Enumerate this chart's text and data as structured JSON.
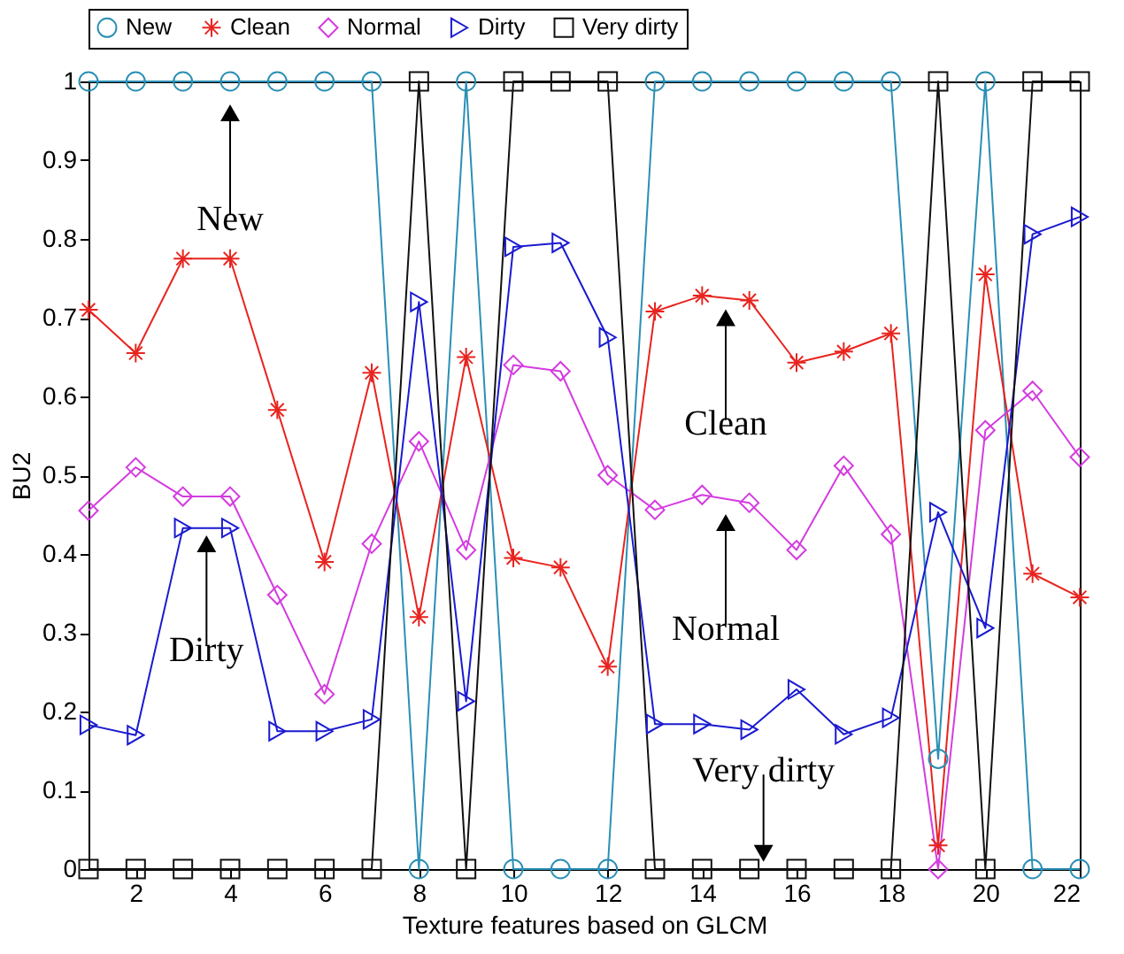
{
  "chart_data": {
    "type": "line",
    "xlabel": "Texture features based on GLCM",
    "ylabel": "BU2",
    "x": [
      1,
      2,
      3,
      4,
      5,
      6,
      7,
      8,
      9,
      10,
      11,
      12,
      13,
      14,
      15,
      16,
      17,
      18,
      19,
      20,
      21,
      22
    ],
    "xlim": [
      1,
      22
    ],
    "xticks": [
      2,
      4,
      6,
      8,
      10,
      12,
      14,
      16,
      18,
      20,
      22
    ],
    "ylim": [
      0,
      1
    ],
    "yticks": [
      0,
      0.1,
      0.2,
      0.3,
      0.4,
      0.5,
      0.6,
      0.7,
      0.8,
      0.9,
      1
    ],
    "grid": false,
    "legend": "top",
    "line_style": "solid",
    "series": [
      {
        "name": "New",
        "color": "#2b8fb5",
        "marker": "circle",
        "values": [
          1,
          1,
          1,
          1,
          1,
          1,
          1,
          0,
          1,
          0,
          0,
          0,
          1,
          1,
          1,
          1,
          1,
          1,
          0.14,
          1,
          0,
          0
        ]
      },
      {
        "name": "Clean",
        "color": "#e8241f",
        "marker": "cross",
        "values": [
          0.71,
          0.655,
          0.775,
          0.775,
          0.583,
          0.39,
          0.63,
          0.32,
          0.65,
          0.395,
          0.383,
          0.257,
          0.708,
          0.728,
          0.722,
          0.643,
          0.657,
          0.68,
          0.03,
          0.755,
          0.375,
          0.345
        ]
      },
      {
        "name": "Normal",
        "color": "#d43ce0",
        "marker": "diamond",
        "values": [
          0.455,
          0.51,
          0.473,
          0.473,
          0.348,
          0.222,
          0.413,
          0.543,
          0.405,
          0.64,
          0.632,
          0.5,
          0.456,
          0.475,
          0.465,
          0.405,
          0.512,
          0.425,
          0,
          0.557,
          0.607,
          0.523
        ]
      },
      {
        "name": "Dirty",
        "color": "#1a1ad0",
        "marker": "triangle",
        "values": [
          0.183,
          0.17,
          0.433,
          0.433,
          0.175,
          0.175,
          0.19,
          0.72,
          0.213,
          0.79,
          0.795,
          0.675,
          0.184,
          0.184,
          0.177,
          0.228,
          0.171,
          0.192,
          0.453,
          0.306,
          0.806,
          0.828
        ]
      },
      {
        "name": "Very dirty",
        "color": "#111111",
        "marker": "square",
        "values": [
          0,
          0,
          0,
          0,
          0,
          0,
          0,
          1,
          0,
          1,
          1,
          1,
          0,
          0,
          0,
          0,
          0,
          0,
          1,
          0,
          1,
          1
        ]
      }
    ],
    "annotations": [
      {
        "text": "New",
        "x": 4,
        "y": 0.98
      },
      {
        "text": "Clean",
        "x": 14.5,
        "y": 0.72
      },
      {
        "text": "Normal",
        "x": 14.5,
        "y": 0.46
      },
      {
        "text": "Dirty",
        "x": 3.5,
        "y": 0.433
      },
      {
        "text": "Very dirty",
        "x": 15.3,
        "y": 0
      }
    ]
  }
}
